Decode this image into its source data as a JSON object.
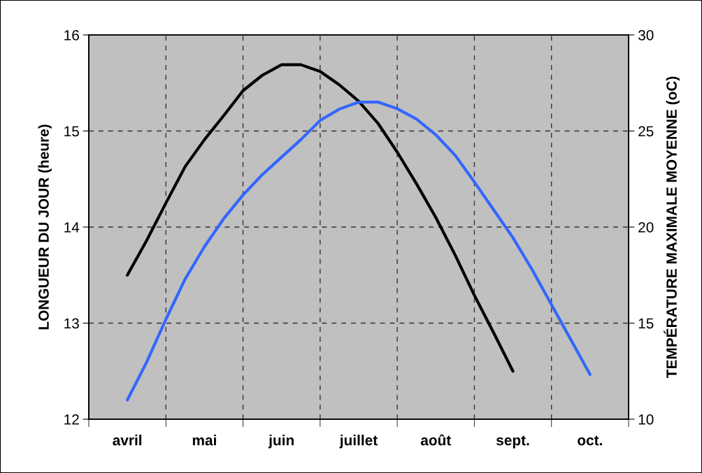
{
  "chart_data": {
    "type": "line",
    "ylabel": "LONGUEUR DU JOUR (heure)",
    "y2label": "TEMPÉRATURE MAXIMALE MOYENNE (oC)",
    "categories": [
      "avril",
      null,
      null,
      null,
      "mai",
      null,
      null,
      null,
      "juin",
      null,
      null,
      null,
      "juillet",
      null,
      null,
      null,
      "août",
      null,
      null,
      null,
      "sept.",
      null,
      null,
      null,
      "oct."
    ],
    "ylim": [
      12,
      16
    ],
    "yticks": [
      12,
      13,
      14,
      15,
      16
    ],
    "y2lim": [
      10,
      30
    ],
    "y2ticks": [
      10,
      15,
      20,
      25,
      30
    ],
    "grid": true,
    "line_style": "solid",
    "marker": "none",
    "series": [
      {
        "color": "#000000",
        "values": [
          13.5,
          13.86,
          14.25,
          14.63,
          14.91,
          15.16,
          15.42,
          15.58,
          15.69,
          15.69,
          15.62,
          15.48,
          15.31,
          15.08,
          14.78,
          14.45,
          14.1,
          13.71,
          13.29,
          12.9,
          12.5,
          null,
          null,
          null,
          null
        ]
      },
      {
        "color": "#3366ff",
        "axis": "y2",
        "values": [
          11.0,
          12.97,
          15.2,
          17.3,
          18.98,
          20.44,
          21.67,
          22.73,
          23.64,
          24.55,
          25.55,
          26.14,
          26.5,
          26.51,
          26.16,
          25.62,
          24.8,
          23.74,
          22.35,
          20.9,
          19.45,
          17.78,
          15.96,
          14.15,
          12.33
        ]
      }
    ]
  }
}
